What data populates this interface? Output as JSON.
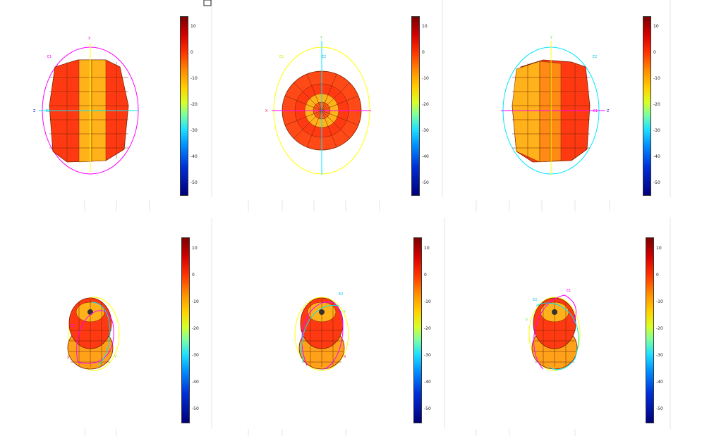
{
  "colorbar_ticks": [
    "10",
    "0",
    "-10",
    "-20",
    "-30",
    "-40",
    "-50"
  ],
  "colors": {
    "x_axis": "#ff00ff",
    "y_axis": "#ffff00",
    "z_axis": "#00e5ff",
    "pattern_hot": "#ff3300",
    "pattern_warm": "#ffb000"
  },
  "panels": [
    {
      "view": "side-xz",
      "labels": {
        "a": "X",
        "b": "Z",
        "c": "E1",
        "d": "E2"
      }
    },
    {
      "view": "top-xy",
      "labels": {
        "a": "Y",
        "b": "X",
        "c": "E1",
        "d": "E2"
      }
    },
    {
      "view": "side-zy",
      "labels": {
        "a": "Y",
        "b": "Z",
        "c": "E2",
        "d": "E1"
      }
    },
    {
      "view": "iso-1",
      "labels": {
        "a": "X",
        "b": "Y",
        "c": "E1",
        "d": ""
      }
    },
    {
      "view": "iso-2",
      "labels": {
        "a": "Y",
        "b": "X",
        "c": "E2",
        "d": ""
      }
    },
    {
      "view": "iso-3",
      "labels": {
        "a": "E2",
        "b": "E1",
        "c": "Y",
        "d": ""
      }
    }
  ]
}
